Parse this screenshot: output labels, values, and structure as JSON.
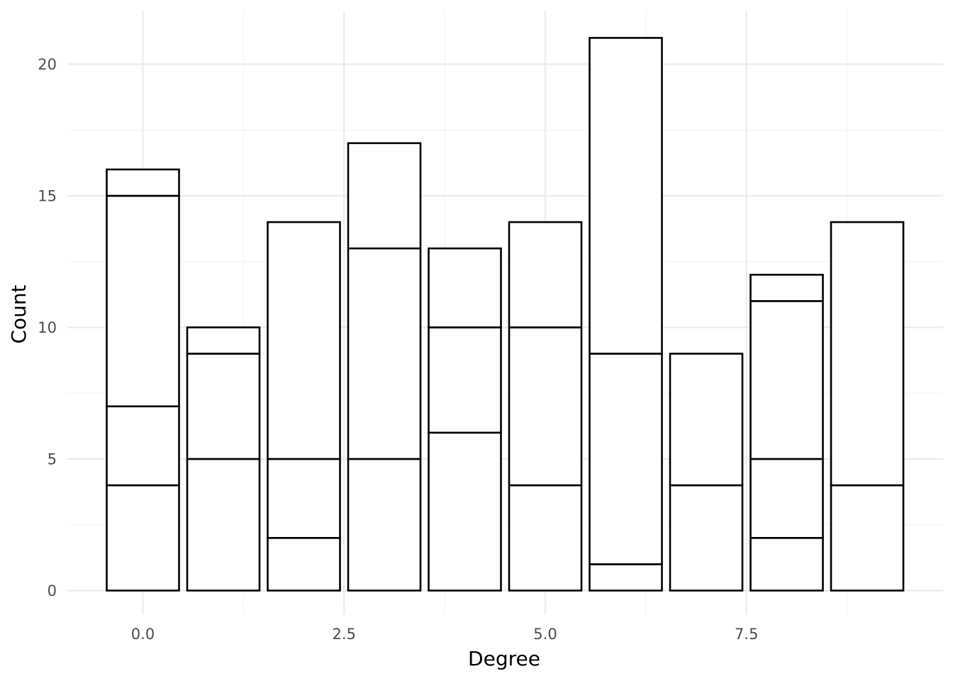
{
  "chart_data": {
    "type": "bar",
    "stacked": true,
    "title": "",
    "xlabel": "Degree",
    "ylabel": "Count",
    "xlim": [
      -0.5,
      9.5
    ],
    "ylim": [
      0,
      21
    ],
    "grid": true,
    "legend": "none",
    "fill_color": "#ffffff",
    "outline_color": "#000000",
    "x_ticks": [
      {
        "value": 0.0,
        "label": "0.0"
      },
      {
        "value": 2.5,
        "label": "2.5"
      },
      {
        "value": 5.0,
        "label": "5.0"
      },
      {
        "value": 7.5,
        "label": "7.5"
      }
    ],
    "y_ticks": [
      {
        "value": 0,
        "label": "0"
      },
      {
        "value": 5,
        "label": "5"
      },
      {
        "value": 10,
        "label": "10"
      },
      {
        "value": 15,
        "label": "15"
      },
      {
        "value": 20,
        "label": "20"
      }
    ],
    "x": [
      0,
      1,
      2,
      3,
      4,
      5,
      6,
      7,
      8,
      9
    ],
    "totals": [
      16,
      10,
      14,
      17,
      13,
      14,
      21,
      9,
      12,
      14
    ],
    "stack_boundaries": [
      [
        4,
        7,
        15,
        16
      ],
      [
        5,
        9,
        10
      ],
      [
        2,
        5,
        14
      ],
      [
        5,
        13,
        17
      ],
      [
        6,
        10,
        13
      ],
      [
        4,
        10,
        14
      ],
      [
        1,
        9,
        21
      ],
      [
        4,
        9
      ],
      [
        2,
        5,
        11,
        12
      ],
      [
        4,
        14
      ]
    ]
  }
}
